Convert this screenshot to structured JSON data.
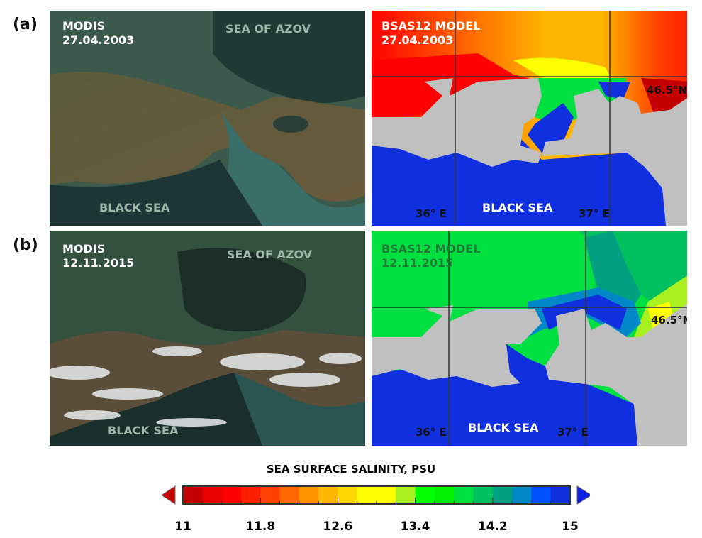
{
  "panels": [
    {
      "label": "(a)",
      "photo": {
        "source": "MODIS",
        "date": "27.04.2003",
        "north": "SEA OF AZOV",
        "south": "BLACK SEA"
      },
      "model": {
        "title": "BSAS12 MODEL",
        "date": "27.04.2003",
        "lon1": "36° E",
        "lon2": "37° E",
        "lat": "46.5°N",
        "south": "BLACK SEA"
      }
    },
    {
      "label": "(b)",
      "photo": {
        "source": "MODIS",
        "date": "12.11.2015",
        "north": "SEA OF AZOV",
        "south": "BLACK SEA"
      },
      "model": {
        "title": "BSAS12 MODEL",
        "date": "12.11.2015",
        "lon1": "36° E",
        "lon2": "37° E",
        "lat": "46.5°N",
        "south": "BLACK SEA"
      }
    }
  ],
  "colorbar": {
    "title": "SEA SURFACE SALINITY, PSU",
    "min": 11,
    "max": 15,
    "step": 0.2,
    "tick_labels": [
      "11",
      "11.8",
      "12.6",
      "13.4",
      "14.2",
      "15"
    ],
    "colors": [
      "#c40000",
      "#e60000",
      "#ff0000",
      "#ff1e00",
      "#ff4000",
      "#ff6800",
      "#ff9400",
      "#ffb600",
      "#ffd800",
      "#ffff00",
      "#ffff00",
      "#a8f020",
      "#00ff00",
      "#00f000",
      "#00e040",
      "#00c060",
      "#00a080",
      "#0088c8",
      "#0050ff",
      "#1030e0"
    ],
    "under_color": "#c40000",
    "over_color": "#1020e0"
  }
}
